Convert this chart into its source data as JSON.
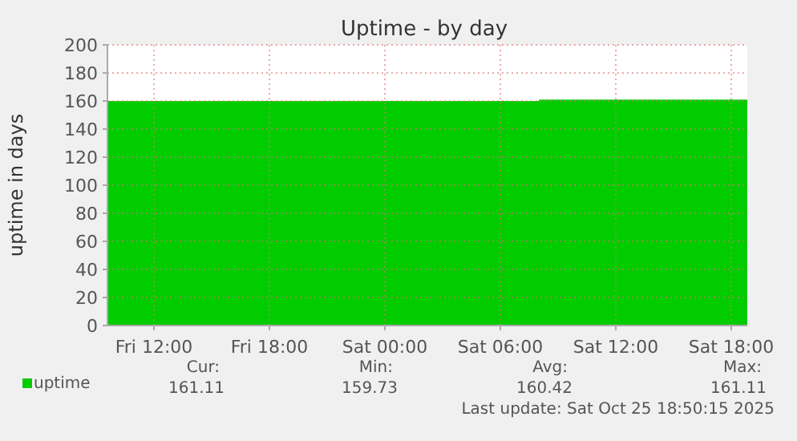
{
  "chart_data": {
    "type": "area",
    "title": "Uptime - by day",
    "ylabel": "uptime in days",
    "x": [
      "2025-10-24T09:35",
      "2025-10-24T12:00",
      "2025-10-24T16:00",
      "2025-10-24T20:00",
      "2025-10-25T00:00",
      "2025-10-25T04:00",
      "2025-10-25T08:00",
      "2025-10-25T12:00",
      "2025-10-25T16:00",
      "2025-10-25T18:50"
    ],
    "series": [
      {
        "name": "uptime",
        "color": "#00cc00",
        "values": [
          160,
          160,
          160,
          160,
          160,
          160,
          161,
          161,
          161,
          161
        ]
      }
    ],
    "xlim": [
      "2025-10-24T09:35",
      "2025-10-25T18:50"
    ],
    "xticks": [
      {
        "value": "2025-10-24T12:00",
        "label": "Fri 12:00"
      },
      {
        "value": "2025-10-24T18:00",
        "label": "Fri 18:00"
      },
      {
        "value": "2025-10-25T00:00",
        "label": "Sat 00:00"
      },
      {
        "value": "2025-10-25T06:00",
        "label": "Sat 06:00"
      },
      {
        "value": "2025-10-25T12:00",
        "label": "Sat 12:00"
      },
      {
        "value": "2025-10-25T18:00",
        "label": "Sat 18:00"
      }
    ],
    "ylim": [
      0,
      200
    ],
    "yticks": [
      0,
      20,
      40,
      60,
      80,
      100,
      120,
      140,
      160,
      180,
      200
    ],
    "grid": true,
    "legend": "bottom left",
    "annotations": [
      "Cur:",
      "Min:",
      "Avg:",
      "Max:",
      "161.11",
      "159.73",
      "160.42",
      "161.11",
      "Last update: Sat Oct 25 18:50:15 2025"
    ]
  }
}
